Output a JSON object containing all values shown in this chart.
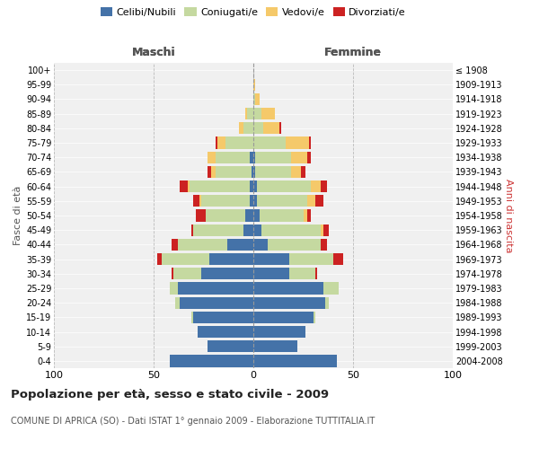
{
  "age_groups": [
    "0-4",
    "5-9",
    "10-14",
    "15-19",
    "20-24",
    "25-29",
    "30-34",
    "35-39",
    "40-44",
    "45-49",
    "50-54",
    "55-59",
    "60-64",
    "65-69",
    "70-74",
    "75-79",
    "80-84",
    "85-89",
    "90-94",
    "95-99",
    "100+"
  ],
  "birth_years": [
    "2004-2008",
    "1999-2003",
    "1994-1998",
    "1989-1993",
    "1984-1988",
    "1979-1983",
    "1974-1978",
    "1969-1973",
    "1964-1968",
    "1959-1963",
    "1954-1958",
    "1949-1953",
    "1944-1948",
    "1939-1943",
    "1934-1938",
    "1929-1933",
    "1924-1928",
    "1919-1923",
    "1914-1918",
    "1909-1913",
    "≤ 1908"
  ],
  "male": {
    "celibi": [
      42,
      23,
      28,
      30,
      37,
      38,
      26,
      22,
      13,
      5,
      4,
      2,
      2,
      1,
      2,
      0,
      0,
      0,
      0,
      0,
      0
    ],
    "coniugati": [
      0,
      0,
      0,
      1,
      2,
      4,
      14,
      24,
      25,
      25,
      20,
      24,
      30,
      18,
      17,
      14,
      5,
      3,
      0,
      0,
      0
    ],
    "vedovi": [
      0,
      0,
      0,
      0,
      0,
      0,
      0,
      0,
      0,
      0,
      0,
      1,
      1,
      2,
      4,
      4,
      2,
      1,
      0,
      0,
      0
    ],
    "divorziati": [
      0,
      0,
      0,
      0,
      0,
      0,
      1,
      2,
      3,
      1,
      5,
      3,
      4,
      2,
      0,
      1,
      0,
      0,
      0,
      0,
      0
    ]
  },
  "female": {
    "nubili": [
      42,
      22,
      26,
      30,
      36,
      35,
      18,
      18,
      7,
      4,
      3,
      2,
      2,
      1,
      1,
      0,
      0,
      0,
      0,
      0,
      0
    ],
    "coniugate": [
      0,
      0,
      0,
      1,
      2,
      8,
      13,
      22,
      27,
      30,
      22,
      25,
      27,
      18,
      18,
      16,
      5,
      4,
      1,
      0,
      0
    ],
    "vedove": [
      0,
      0,
      0,
      0,
      0,
      0,
      0,
      0,
      0,
      1,
      2,
      4,
      5,
      5,
      8,
      12,
      8,
      7,
      2,
      1,
      0
    ],
    "divorziate": [
      0,
      0,
      0,
      0,
      0,
      0,
      1,
      5,
      3,
      3,
      2,
      4,
      3,
      2,
      2,
      1,
      1,
      0,
      0,
      0,
      0
    ]
  },
  "colors": {
    "celibi": "#4472a8",
    "coniugati": "#c5d9a0",
    "vedovi": "#f5c96a",
    "divorziati": "#cc2222"
  },
  "title": "Popolazione per età, sesso e stato civile - 2009",
  "subtitle": "COMUNE DI APRICA (SO) - Dati ISTAT 1° gennaio 2009 - Elaborazione TUTTITALIA.IT",
  "xlabel_left": "Maschi",
  "xlabel_right": "Femmine",
  "ylabel_left": "Fasce di età",
  "ylabel_right": "Anni di nascita",
  "xlim": 100,
  "background_color": "#ffffff"
}
